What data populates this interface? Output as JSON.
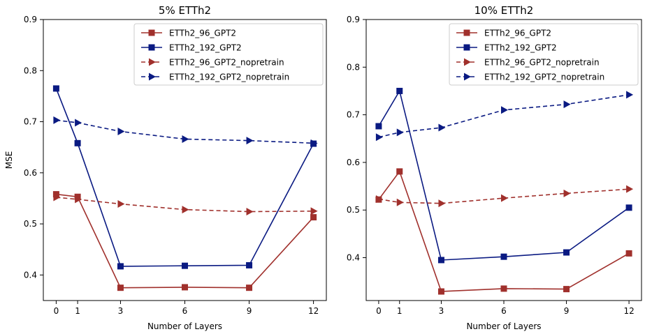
{
  "chart_data": [
    {
      "type": "line",
      "title": "5% ETTh2",
      "xlabel": "Number of Layers",
      "ylabel": "MSE",
      "x": [
        0,
        1,
        3,
        6,
        9,
        12
      ],
      "xticks": [
        "0",
        "1",
        "3",
        "6",
        "9",
        "12"
      ],
      "yticks": [
        "0.4",
        "0.5",
        "0.6",
        "0.7",
        "0.8",
        "0.9"
      ],
      "xlim": [
        -0.6,
        12.6
      ],
      "ylim": [
        0.35,
        0.9
      ],
      "legend_position": "upper-right",
      "series": [
        {
          "name": "ETTh2_96_GPT2",
          "color": "#a0302c",
          "style": "solid",
          "marker": "square",
          "values": [
            0.558,
            0.553,
            0.375,
            0.376,
            0.375,
            0.513
          ]
        },
        {
          "name": "ETTh2_192_GPT2",
          "color": "#0a1a82",
          "style": "solid",
          "marker": "square",
          "values": [
            0.765,
            0.658,
            0.417,
            0.418,
            0.419,
            0.657
          ]
        },
        {
          "name": "ETTh2_96_GPT2_nopretrain",
          "color": "#a0302c",
          "style": "dashed",
          "marker": "triangle-right",
          "values": [
            0.552,
            0.548,
            0.539,
            0.528,
            0.524,
            0.525
          ]
        },
        {
          "name": "ETTh2_192_GPT2_nopretrain",
          "color": "#0a1a82",
          "style": "dashed",
          "marker": "triangle-right",
          "values": [
            0.703,
            0.698,
            0.681,
            0.666,
            0.663,
            0.658
          ]
        }
      ]
    },
    {
      "type": "line",
      "title": "10% ETTh2",
      "xlabel": "Number of Layers",
      "ylabel": "",
      "x": [
        0,
        1,
        3,
        6,
        9,
        12
      ],
      "xticks": [
        "0",
        "1",
        "3",
        "6",
        "9",
        "12"
      ],
      "yticks": [
        "0.4",
        "0.5",
        "0.6",
        "0.7",
        "0.8",
        "0.9"
      ],
      "xlim": [
        -0.6,
        12.6
      ],
      "ylim": [
        0.31,
        0.9
      ],
      "legend_position": "upper-right",
      "series": [
        {
          "name": "ETTh2_96_GPT2",
          "color": "#a0302c",
          "style": "solid",
          "marker": "square",
          "values": [
            0.522,
            0.581,
            0.329,
            0.335,
            0.334,
            0.409
          ]
        },
        {
          "name": "ETTh2_192_GPT2",
          "color": "#0a1a82",
          "style": "solid",
          "marker": "square",
          "values": [
            0.676,
            0.75,
            0.395,
            0.402,
            0.411,
            0.505
          ]
        },
        {
          "name": "ETTh2_96_GPT2_nopretrain",
          "color": "#a0302c",
          "style": "dashed",
          "marker": "triangle-right",
          "values": [
            0.523,
            0.516,
            0.514,
            0.525,
            0.535,
            0.544
          ]
        },
        {
          "name": "ETTh2_192_GPT2_nopretrain",
          "color": "#0a1a82",
          "style": "dashed",
          "marker": "triangle-right",
          "values": [
            0.653,
            0.663,
            0.673,
            0.71,
            0.722,
            0.742
          ]
        }
      ]
    }
  ]
}
